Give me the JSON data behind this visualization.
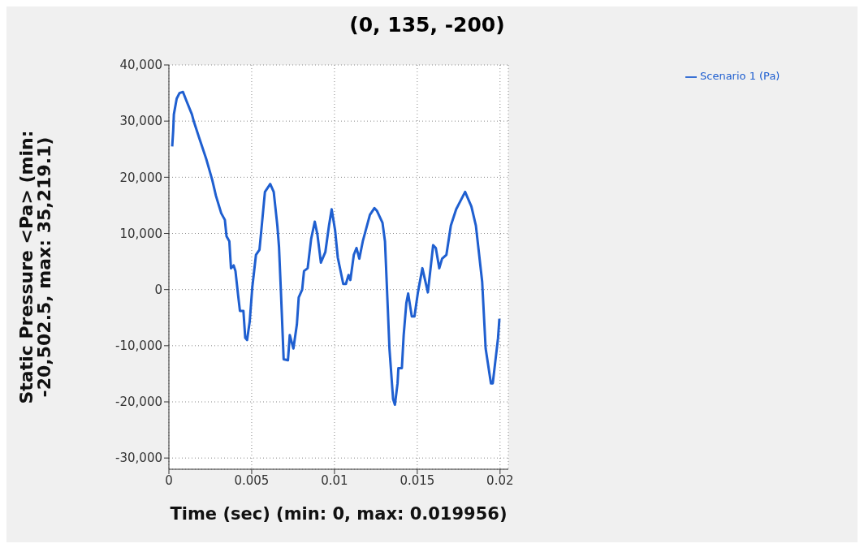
{
  "chart_data": {
    "type": "line",
    "title": "(0, 135, -200)",
    "xlabel": "Time (sec) (min: 0, max: 0.019956)",
    "ylabel": "Static Pressure <Pa> (min: -20,502.5, max: 35,219.1)",
    "xlim": [
      0,
      0.0205
    ],
    "xticks": [
      0,
      0.005,
      0.01,
      0.015,
      0.02
    ],
    "ylim": [
      -32000,
      40000
    ],
    "yticks": [
      {
        "value": -30000,
        "label": "-30,000"
      },
      {
        "value": -20000,
        "label": "-20,000"
      },
      {
        "value": -10000,
        "label": "-10,000"
      },
      0,
      {
        "value": 10000,
        "label": "10,000"
      },
      {
        "value": 20000,
        "label": "20,000"
      },
      {
        "value": 30000,
        "label": "30,000"
      },
      {
        "value": 40000,
        "label": "40,000"
      }
    ],
    "grid": true,
    "legend": "top right",
    "marker": "none",
    "line_style": "solid",
    "series": [
      {
        "name": "Scenario 1 (Pa)",
        "color": "#1f5fd0",
        "x": [
          0.0002,
          0.00026,
          0.0003,
          0.00047,
          0.00064,
          0.00085,
          0.00106,
          0.00139,
          0.0015,
          0.00182,
          0.00225,
          0.00262,
          0.00284,
          0.00316,
          0.00338,
          0.00348,
          0.00365,
          0.00375,
          0.00391,
          0.00402,
          0.00418,
          0.00429,
          0.0045,
          0.00461,
          0.00472,
          0.00488,
          0.00504,
          0.00526,
          0.00547,
          0.00558,
          0.0058,
          0.00612,
          0.00633,
          0.00655,
          0.00665,
          0.00676,
          0.00682,
          0.00693,
          0.00719,
          0.0073,
          0.00752,
          0.00773,
          0.00784,
          0.00805,
          0.00816,
          0.00838,
          0.00859,
          0.00881,
          0.00897,
          0.00918,
          0.00945,
          0.00967,
          0.00983,
          0.01004,
          0.0102,
          0.01053,
          0.01069,
          0.01085,
          0.01096,
          0.01117,
          0.01133,
          0.0115,
          0.01171,
          0.01214,
          0.01241,
          0.01257,
          0.0129,
          0.01305,
          0.01322,
          0.01332,
          0.01354,
          0.01365,
          0.01381,
          0.01386,
          0.01407,
          0.01418,
          0.01434,
          0.01445,
          0.01467,
          0.01483,
          0.01504,
          0.01531,
          0.01564,
          0.01596,
          0.01612,
          0.01633,
          0.0165,
          0.01676,
          0.01703,
          0.01735,
          0.01789,
          0.01827,
          0.01854,
          0.01892,
          0.01913,
          0.01945,
          0.01956,
          0.01988,
          0.01996
        ],
        "values": [
          25500,
          28300,
          31200,
          34000,
          35000,
          35200,
          33600,
          31200,
          30000,
          27100,
          23300,
          19500,
          16700,
          13600,
          12400,
          9500,
          8600,
          3800,
          4300,
          3300,
          -1000,
          -3800,
          -3800,
          -8600,
          -9000,
          -5700,
          500,
          6200,
          7100,
          10500,
          17400,
          18800,
          17400,
          11400,
          7600,
          0,
          -4300,
          -12400,
          -12600,
          -8100,
          -10500,
          -6200,
          -1400,
          0,
          3300,
          3800,
          9000,
          12100,
          9800,
          4800,
          6700,
          11400,
          14300,
          10500,
          5700,
          1000,
          1000,
          2600,
          1700,
          6200,
          7400,
          5500,
          8600,
          13300,
          14500,
          14000,
          11900,
          8600,
          -3300,
          -10500,
          -19500,
          -20500,
          -16700,
          -14000,
          -14000,
          -8100,
          -2400,
          -700,
          -4800,
          -4800,
          -500,
          3800,
          -500,
          7900,
          7400,
          3800,
          5500,
          6200,
          11400,
          14300,
          17400,
          14800,
          11400,
          1400,
          -10500,
          -16700,
          -16700,
          -8600,
          -5200
        ]
      }
    ]
  }
}
